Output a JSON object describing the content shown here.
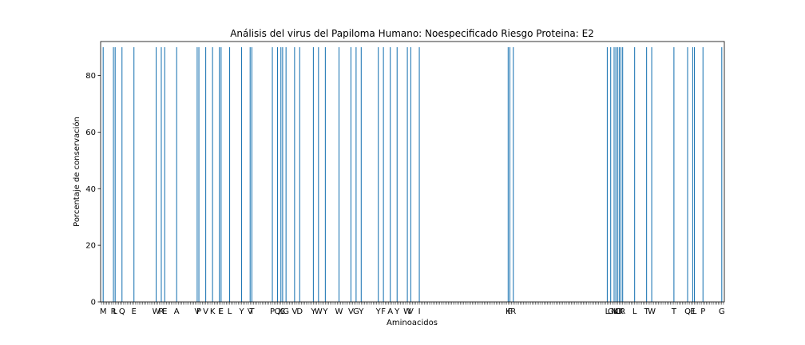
{
  "chart_data": {
    "type": "bar",
    "title": "Análisis del virus del Papiloma Humano: Noespecificado Riesgo Proteina: E2",
    "xlabel": "Aminoacidos",
    "ylabel": "Porcentaje de conservación",
    "ylim": [
      0,
      92
    ],
    "yticks": [
      0,
      20,
      40,
      60,
      80
    ],
    "n_positions": 365,
    "bar_color": "#1f77b4",
    "grid": false,
    "points": [
      {
        "pos": 1,
        "label": "M",
        "value": 90
      },
      {
        "pos": 7,
        "label": "R",
        "value": 90
      },
      {
        "pos": 8,
        "label": "L",
        "value": 90
      },
      {
        "pos": 12,
        "label": "Q",
        "value": 90
      },
      {
        "pos": 19,
        "label": "E",
        "value": 90
      },
      {
        "pos": 32,
        "label": "W",
        "value": 90
      },
      {
        "pos": 35,
        "label": "R",
        "value": 90
      },
      {
        "pos": 37,
        "label": "E",
        "value": 90
      },
      {
        "pos": 44,
        "label": "A",
        "value": 90
      },
      {
        "pos": 56,
        "label": "V",
        "value": 90
      },
      {
        "pos": 57,
        "label": "P",
        "value": 90
      },
      {
        "pos": 61,
        "label": "V",
        "value": 90
      },
      {
        "pos": 65,
        "label": "K",
        "value": 90
      },
      {
        "pos": 69,
        "label": "I",
        "value": 90
      },
      {
        "pos": 70,
        "label": "E",
        "value": 90
      },
      {
        "pos": 75,
        "label": "L",
        "value": 90
      },
      {
        "pos": 82,
        "label": "Y",
        "value": 90
      },
      {
        "pos": 87,
        "label": "V",
        "value": 90
      },
      {
        "pos": 88,
        "label": "T",
        "value": 90
      },
      {
        "pos": 100,
        "label": "P",
        "value": 90
      },
      {
        "pos": 103,
        "label": "Q",
        "value": 90
      },
      {
        "pos": 105,
        "label": "K",
        "value": 90
      },
      {
        "pos": 106,
        "label": "S",
        "value": 90
      },
      {
        "pos": 108,
        "label": "G",
        "value": 90
      },
      {
        "pos": 113,
        "label": "V",
        "value": 90
      },
      {
        "pos": 116,
        "label": "D",
        "value": 90
      },
      {
        "pos": 124,
        "label": "Y",
        "value": 90
      },
      {
        "pos": 127,
        "label": "W",
        "value": 90
      },
      {
        "pos": 131,
        "label": "Y",
        "value": 90
      },
      {
        "pos": 139,
        "label": "W",
        "value": 90
      },
      {
        "pos": 146,
        "label": "V",
        "value": 90
      },
      {
        "pos": 149,
        "label": "G",
        "value": 90
      },
      {
        "pos": 152,
        "label": "Y",
        "value": 90
      },
      {
        "pos": 162,
        "label": "Y",
        "value": 90
      },
      {
        "pos": 165,
        "label": "F",
        "value": 90
      },
      {
        "pos": 169,
        "label": "A",
        "value": 90
      },
      {
        "pos": 173,
        "label": "Y",
        "value": 90
      },
      {
        "pos": 179,
        "label": "W",
        "value": 90
      },
      {
        "pos": 181,
        "label": "V",
        "value": 90
      },
      {
        "pos": 186,
        "label": "I",
        "value": 90
      },
      {
        "pos": 238,
        "label": "K",
        "value": 90
      },
      {
        "pos": 239,
        "label": "F",
        "value": 90
      },
      {
        "pos": 241,
        "label": "R",
        "value": 90
      },
      {
        "pos": 296,
        "label": "L",
        "value": 90
      },
      {
        "pos": 298,
        "label": "G",
        "value": 90
      },
      {
        "pos": 300,
        "label": "N",
        "value": 90
      },
      {
        "pos": 301,
        "label": "K",
        "value": 90
      },
      {
        "pos": 302,
        "label": "C",
        "value": 90
      },
      {
        "pos": 303,
        "label": "D",
        "value": 90
      },
      {
        "pos": 304,
        "label": "K",
        "value": 90
      },
      {
        "pos": 305,
        "label": "R",
        "value": 90
      },
      {
        "pos": 312,
        "label": "L",
        "value": 90
      },
      {
        "pos": 319,
        "label": "T",
        "value": 90
      },
      {
        "pos": 322,
        "label": "W",
        "value": 90
      },
      {
        "pos": 335,
        "label": "T",
        "value": 90
      },
      {
        "pos": 343,
        "label": "Q",
        "value": 90
      },
      {
        "pos": 346,
        "label": "E",
        "value": 90
      },
      {
        "pos": 347,
        "label": "L",
        "value": 90
      },
      {
        "pos": 352,
        "label": "P",
        "value": 90
      },
      {
        "pos": 363,
        "label": "G",
        "value": 90
      }
    ]
  }
}
